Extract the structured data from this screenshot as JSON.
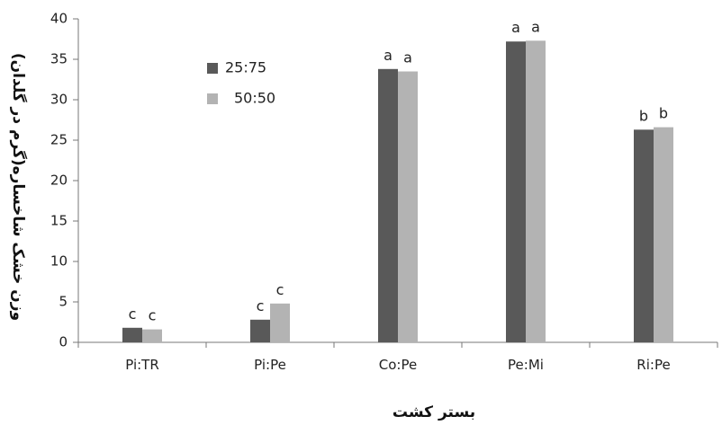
{
  "chart_data": {
    "type": "bar",
    "categories": [
      "Pi:TR",
      "Pi:Pe",
      "Co:Pe",
      "Pe:Mi",
      "Ri:Pe"
    ],
    "series": [
      {
        "name": "25:75",
        "color": "#595959",
        "values": [
          1.8,
          2.8,
          33.8,
          37.2,
          26.3
        ],
        "labels": [
          "c",
          "c",
          "a",
          "a",
          "b"
        ]
      },
      {
        "name": "50:50",
        "color": "#b3b3b3",
        "values": [
          1.6,
          4.8,
          33.5,
          37.3,
          26.6
        ],
        "labels": [
          "c",
          "c",
          "a",
          "a",
          "b"
        ]
      }
    ],
    "xlabel": "بستر کشت",
    "ylabel": "وزن خشک شاخساره(گرم در گلدان)",
    "ylim": [
      0,
      40
    ],
    "yticks": [
      0,
      5,
      10,
      15,
      20,
      25,
      30,
      35,
      40
    ],
    "grid": false,
    "legend_position": "top-left"
  }
}
